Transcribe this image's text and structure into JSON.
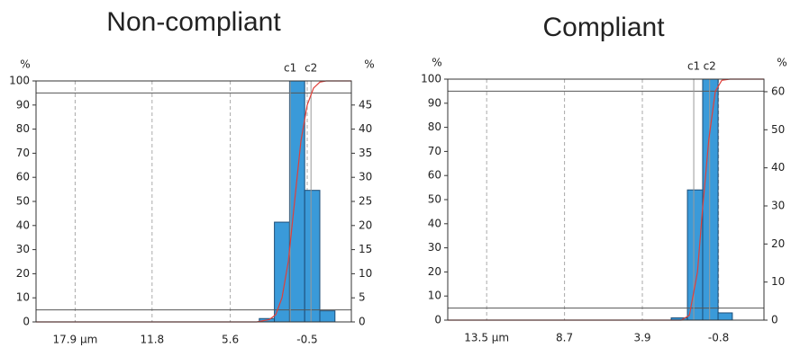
{
  "chart_data": [
    {
      "type": "histogram",
      "title": "Non-compliant",
      "ylabel": "%",
      "y2label": "%",
      "xlim": [
        21,
        -4
      ],
      "xticks": [
        {
          "value": 17.9,
          "label": "17.9 µm"
        },
        11.8,
        5.6,
        -0.5
      ],
      "ylim": [
        0,
        100
      ],
      "yticks": [
        0,
        10,
        20,
        30,
        40,
        50,
        60,
        70,
        80,
        90,
        100
      ],
      "y2lim": [
        0,
        50
      ],
      "y2ticks": [
        0,
        5,
        10,
        15,
        20,
        25,
        30,
        35,
        40,
        45
      ],
      "bins": [
        3.3,
        2.1,
        0.9,
        -0.3,
        -1.5,
        -2.7
      ],
      "values": [
        0.7,
        20.7,
        50,
        27.3,
        2.3
      ],
      "axis": "y2",
      "color": "#3a9ad9",
      "cumulative": {
        "color": "#e0403a",
        "x": [
          21,
          3.5,
          2.5,
          2.0,
          1.5,
          1.0,
          0.5,
          0.0,
          -0.5,
          -1.0,
          -1.5,
          -2.0,
          -4
        ],
        "values": [
          0,
          0,
          1,
          3,
          10,
          25,
          50,
          75,
          90,
          97,
          99.5,
          100,
          100
        ]
      },
      "markers": [
        {
          "label": "c1",
          "value": 0.85
        },
        {
          "label": "c2",
          "value": -0.8
        }
      ],
      "hlines": [
        5,
        95
      ]
    },
    {
      "type": "histogram",
      "title": "Compliant",
      "ylabel": "%",
      "y2label": "%",
      "xlim": [
        15.9,
        -3.6
      ],
      "xticks": [
        {
          "value": 13.5,
          "label": "13.5 µm"
        },
        8.7,
        3.9,
        -0.8
      ],
      "ylim": [
        0,
        100
      ],
      "yticks": [
        0,
        10,
        20,
        30,
        40,
        50,
        60,
        70,
        80,
        90,
        100
      ],
      "y2lim": [
        0,
        63.3
      ],
      "y2ticks": [
        0,
        10,
        20,
        30,
        40,
        50,
        60
      ],
      "bins": [
        2.12,
        1.12,
        0.18,
        -0.77,
        -1.65
      ],
      "values": [
        0.6,
        34.2,
        63.3,
        1.9
      ],
      "axis": "y2",
      "color": "#3a9ad9",
      "cumulative": {
        "color": "#e0403a",
        "x": [
          15.9,
          1.5,
          1.0,
          0.5,
          0.2,
          -0.2,
          -0.6,
          -1.0,
          -1.5,
          -3.6
        ],
        "values": [
          0,
          0,
          2,
          20,
          45,
          75,
          95,
          99.5,
          100,
          100
        ]
      },
      "markers": [
        {
          "label": "c1",
          "value": 0.73
        },
        {
          "label": "c2",
          "value": -0.25
        }
      ],
      "hlines": [
        5,
        95
      ]
    }
  ]
}
